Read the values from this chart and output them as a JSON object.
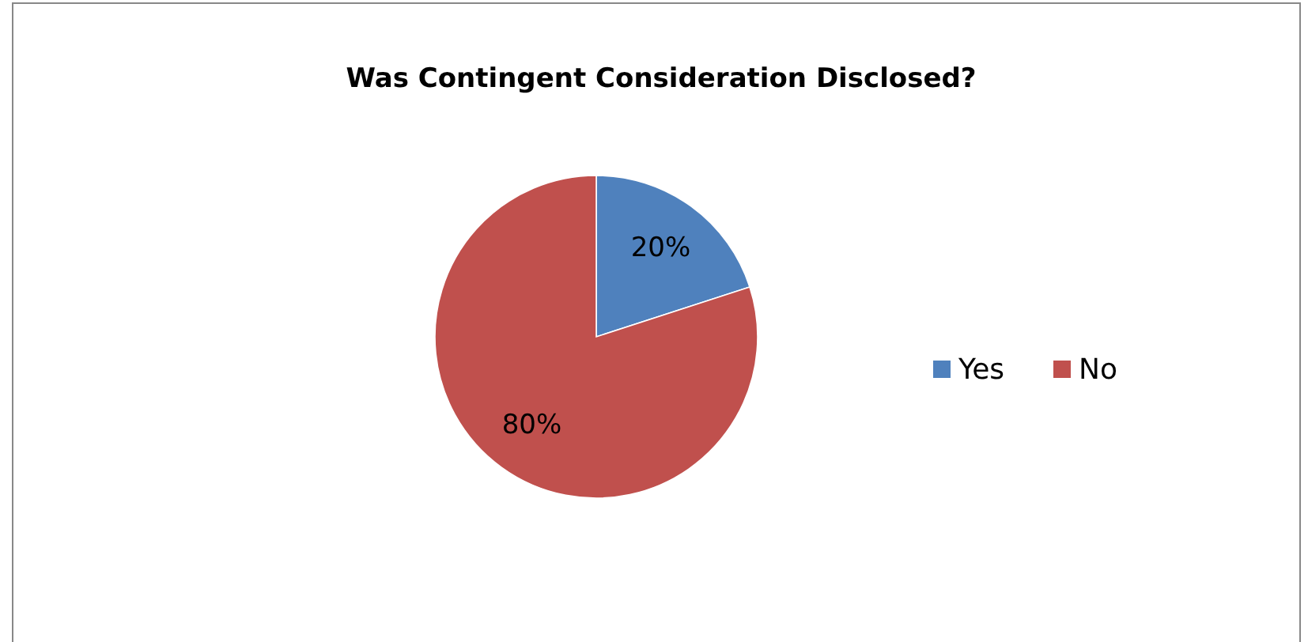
{
  "chart_data": {
    "type": "pie",
    "title": "Was Contingent Consideration Disclosed?",
    "categories": [
      "Yes",
      "No"
    ],
    "values": [
      20,
      80
    ],
    "colors": [
      "#4f81bd",
      "#c0504d"
    ],
    "value_labels": [
      "20%",
      "80%"
    ],
    "legend": "right"
  }
}
